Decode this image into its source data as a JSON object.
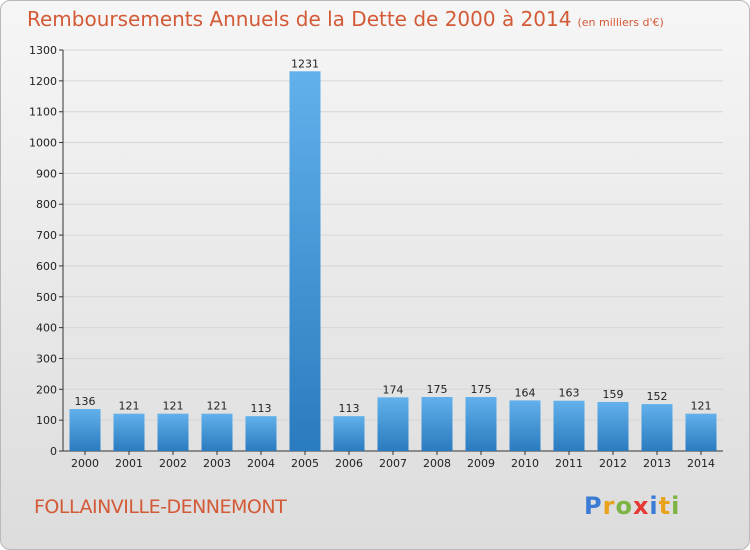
{
  "title": "Remboursements Annuels de la Dette de 2000 à 2014",
  "unit": "(en milliers d'€)",
  "place": "FOLLAINVILLE-DENNEMONT",
  "logo": {
    "text": "Proxiti",
    "letters": [
      {
        "ch": "P",
        "color": "#3a7bd5"
      },
      {
        "ch": "r",
        "color": "#e8a21b"
      },
      {
        "ch": "o",
        "color": "#7cb342"
      },
      {
        "ch": "x",
        "color": "#e53935"
      },
      {
        "ch": "i",
        "color": "#3a7bd5"
      },
      {
        "ch": "t",
        "color": "#e8a21b"
      },
      {
        "ch": "i",
        "color": "#7cb342"
      }
    ]
  },
  "colors": {
    "title": "#d35a36",
    "bar_top": "#62b1ec",
    "bar_bottom": "#2a7bbf",
    "grid": "#d6d6d6"
  },
  "chart_data": {
    "type": "bar",
    "categories": [
      "2000",
      "2001",
      "2002",
      "2003",
      "2004",
      "2005",
      "2006",
      "2007",
      "2008",
      "2009",
      "2010",
      "2011",
      "2012",
      "2013",
      "2014"
    ],
    "values": [
      136,
      121,
      121,
      121,
      113,
      1231,
      113,
      174,
      175,
      175,
      164,
      163,
      159,
      152,
      121
    ],
    "yticks": [
      0,
      100,
      200,
      300,
      400,
      500,
      600,
      700,
      800,
      900,
      1000,
      1100,
      1200,
      1300
    ],
    "ylim": [
      0,
      1300
    ],
    "grid": true
  }
}
